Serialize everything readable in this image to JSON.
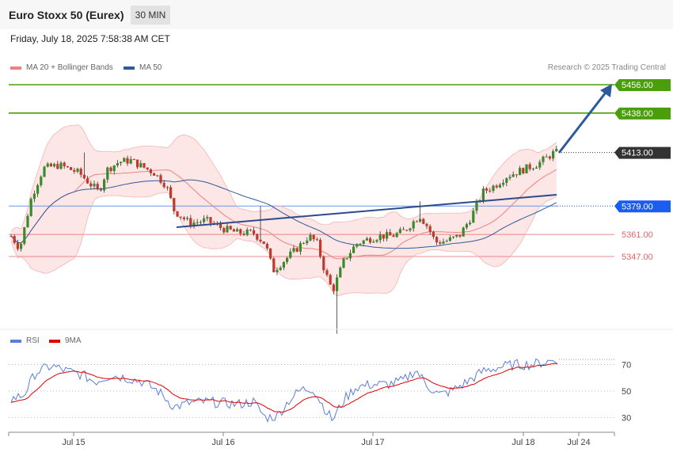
{
  "header": {
    "title": "Euro Stoxx 50 (Eurex)",
    "timeframe": "30 MIN",
    "datetime": "Friday, July 18, 2025 7:58:38 AM CET"
  },
  "legend": {
    "ma20": "MA 20 + Bollinger Bands",
    "ma50": "MA 50",
    "copyright": "Research © 2025 Trading Central"
  },
  "colors": {
    "ma20": "#f08080",
    "ma50": "#2e5a9c",
    "bollinger_fill": "#fde3e3",
    "resistance": "#4a9e0a",
    "support": "#e06666",
    "pivot": "#1a5ef0",
    "current": "#333333",
    "rsi": "#5b7fd6",
    "rsi_ma": "#e00000",
    "trend_arrow": "#2e5a9c",
    "candle_up": "#3a8a2a",
    "candle_down": "#c0392b"
  },
  "levels": [
    {
      "label": "5456.00",
      "type": "resistance"
    },
    {
      "label": "5438.00",
      "type": "resistance"
    },
    {
      "label": "5413.00",
      "type": "current"
    },
    {
      "label": "5379.00",
      "type": "pivot"
    },
    {
      "label": "5361.00",
      "type": "support"
    },
    {
      "label": "5347.00",
      "type": "support"
    }
  ],
  "x_axis": {
    "ticks": [
      "Jul 15",
      "Jul 16",
      "Jul 17",
      "Jul 18",
      "Jul 24"
    ]
  },
  "rsi_panel": {
    "legend_rsi": "RSI",
    "legend_ma": "9MA",
    "ticks": [
      "70",
      "50",
      "30"
    ]
  },
  "chart_data": {
    "type": "candlestick",
    "instrument": "Euro Stoxx 50 (Eurex)",
    "interval": "30 MIN",
    "y_unit": "index points",
    "levels": [
      5456,
      5438,
      5413,
      5379,
      5361,
      5347
    ],
    "price_series_approx": [
      {
        "x": "Jul 14",
        "close": 5358
      },
      {
        "x": "Jul 15",
        "close": 5394
      },
      {
        "x": "Jul 15",
        "close": 5408
      },
      {
        "x": "Jul 15",
        "close": 5386
      },
      {
        "x": "Jul 16",
        "close": 5372
      },
      {
        "x": "Jul 16",
        "close": 5366
      },
      {
        "x": "Jul 16",
        "close": 5348
      },
      {
        "x": "Jul 16",
        "close": 5350
      },
      {
        "x": "Jul 17",
        "close": 5322
      },
      {
        "x": "Jul 17",
        "close": 5346
      },
      {
        "x": "Jul 17",
        "close": 5362
      },
      {
        "x": "Jul 17",
        "close": 5374
      },
      {
        "x": "Jul 17",
        "close": 5356
      },
      {
        "x": "Jul 18",
        "close": 5388
      },
      {
        "x": "Jul 18",
        "close": 5404
      },
      {
        "x": "Jul 18",
        "close": 5413
      }
    ],
    "rsi": {
      "range": [
        0,
        100
      ],
      "levels": [
        70,
        50,
        30
      ],
      "last": 72
    }
  }
}
